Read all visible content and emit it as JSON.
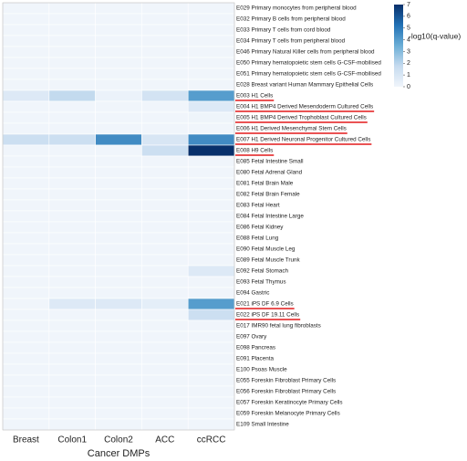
{
  "chart_data": {
    "type": "heatmap",
    "x_categories": [
      "Breast",
      "Colon1",
      "Colon2",
      "ACC",
      "ccRCC"
    ],
    "y_categories": [
      "E029 Primary monocytes from peripheral blood",
      "E032 Primary B cells from peripheral blood",
      "E033 Primary T cells from cord blood",
      "E034 Primary T cells from peripheral blood",
      "E046 Primary Natural Killer cells from peripheral blood",
      "E050 Primary hematopoietic stem cells G-CSF-mobilised",
      "E051 Primary hematopoietic stem cells G-CSF-mobilised",
      "E028 Breast variant Human Mammary Epithelial Cells",
      "E003 H1 Cells",
      "E004 H1 BMP4 Derived Mesendoderm Cultured Cells",
      "E005 H1 BMP4 Derived Trophoblast Cultured Cells",
      "E006 H1 Derived Mesenchymal Stem Cells",
      "E007 H1 Derived Neuronal Progenitor Cultured Cells",
      "E008 H9 Cells",
      "E085 Fetal Intestine Small",
      "E080 Fetal Adrenal Gland",
      "E081 Fetal Brain Male",
      "E082 Fetal Brain Female",
      "E083 Fetal Heart",
      "E084 Fetal Intestine Large",
      "E086 Fetal Kidney",
      "E088 Fetal Lung",
      "E090 Fetal Muscle Leg",
      "E089 Fetal Muscle Trunk",
      "E092 Fetal Stomach",
      "E093 Fetal Thymus",
      "E094 Gastric",
      "E021 iPS DF 6.9 Cells",
      "E022 iPS DF 19.11 Cells",
      "E017 IMR90 fetal lung fibroblasts",
      "E097 Ovary",
      "E098 Pancreas",
      "E091 Placenta",
      "E100 Psoas Muscle",
      "E055 Foreskin Fibroblast Primary Cells",
      "E056 Foreskin Fibroblast Primary Cells",
      "E057 Foreskin Keratinocyte Primary Cells",
      "E059 Foreskin Melanocyte Primary Cells",
      "E109 Small Intestine"
    ],
    "values": [
      [
        0,
        0,
        0,
        0,
        0
      ],
      [
        0,
        0,
        0,
        0,
        0
      ],
      [
        0,
        0,
        0,
        0,
        0
      ],
      [
        0,
        0,
        0,
        0,
        0
      ],
      [
        0,
        0,
        0,
        0,
        0
      ],
      [
        0,
        0,
        0,
        0,
        0
      ],
      [
        0,
        0,
        0,
        0,
        0
      ],
      [
        0,
        0,
        0,
        0,
        0
      ],
      [
        0.8,
        1.8,
        0.2,
        1.2,
        4
      ],
      [
        0,
        0,
        0,
        0,
        0.8
      ],
      [
        0,
        0,
        0,
        0,
        0.1
      ],
      [
        0,
        0,
        0,
        0,
        0
      ],
      [
        1.5,
        1.5,
        4.5,
        1,
        4.5
      ],
      [
        0,
        0,
        0,
        1.5,
        7
      ],
      [
        0,
        0,
        0,
        0,
        0
      ],
      [
        0,
        0,
        0,
        0,
        0
      ],
      [
        0,
        0,
        0,
        0,
        0
      ],
      [
        0,
        0,
        0,
        0,
        0
      ],
      [
        0,
        0,
        0,
        0,
        0
      ],
      [
        0,
        0,
        0,
        0,
        0
      ],
      [
        0,
        0,
        0,
        0,
        0
      ],
      [
        0,
        0,
        0,
        0,
        0
      ],
      [
        0,
        0,
        0,
        0,
        0
      ],
      [
        0,
        0,
        0,
        0,
        0
      ],
      [
        0,
        0,
        0,
        0,
        0.8
      ],
      [
        0,
        0,
        0,
        0,
        0
      ],
      [
        0,
        0,
        0,
        0,
        0
      ],
      [
        0,
        0.8,
        0.8,
        0.5,
        4
      ],
      [
        0,
        0,
        0,
        0,
        1.5
      ],
      [
        0,
        0,
        0,
        0,
        0
      ],
      [
        0,
        0,
        0,
        0,
        0
      ],
      [
        0,
        0,
        0,
        0,
        0
      ],
      [
        0,
        0,
        0,
        0,
        0
      ],
      [
        0,
        0,
        0,
        0,
        0
      ],
      [
        0,
        0,
        0,
        0,
        0
      ],
      [
        0,
        0,
        0,
        0,
        0
      ],
      [
        0,
        0,
        0,
        0,
        0
      ],
      [
        0,
        0,
        0,
        0,
        0
      ],
      [
        0,
        0,
        0,
        0,
        0
      ]
    ],
    "highlighted_rows": [
      8,
      9,
      10,
      11,
      12,
      13,
      27,
      28
    ],
    "highlight_color": "#e31a1c",
    "xlabel": "Cancer DMPs",
    "colorbar_label": "-log10(q-value)",
    "clim": [
      0,
      7
    ],
    "cticks": [
      0,
      1,
      2,
      3,
      4,
      5,
      6,
      7
    ],
    "colors": [
      "#f0f5fb",
      "#c6dbef",
      "#6baed6",
      "#2171b5",
      "#08306b"
    ]
  }
}
